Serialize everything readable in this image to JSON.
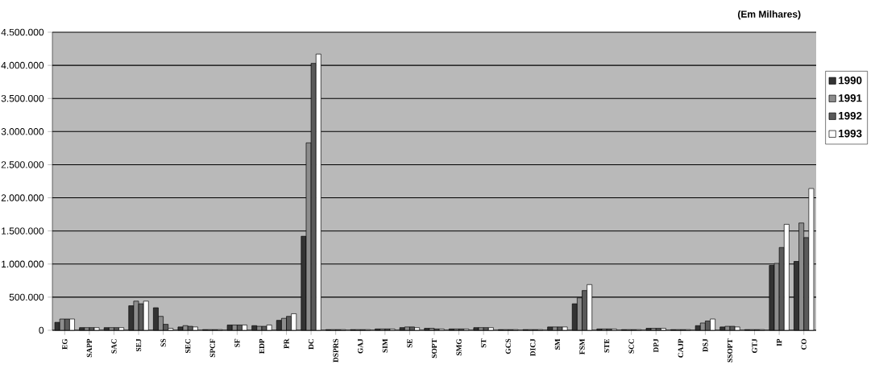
{
  "chart_data": {
    "type": "bar",
    "categories": [
      "EG",
      "SAPP",
      "SAC",
      "SEJ",
      "SS",
      "SEC",
      "SPCF",
      "SF",
      "EDP",
      "PR",
      "DC",
      "DSPRS",
      "GAJ",
      "SIM",
      "SE",
      "SOPT",
      "SMG",
      "ST",
      "GCS",
      "DICJ",
      "SM",
      "FSM",
      "STE",
      "SCC",
      "DPJ",
      "CAJP",
      "DSJ",
      "SSOPT",
      "GTJ",
      "IP",
      "CO"
    ],
    "series": [
      {
        "name": "1990",
        "color": "#333333",
        "values": [
          120000,
          40000,
          40000,
          370000,
          340000,
          50000,
          10000,
          80000,
          70000,
          150000,
          1420000,
          10000,
          10000,
          20000,
          40000,
          30000,
          20000,
          40000,
          10000,
          10000,
          50000,
          400000,
          20000,
          10000,
          30000,
          10000,
          70000,
          50000,
          10000,
          980000,
          1040000
        ]
      },
      {
        "name": "1991",
        "color": "#8c8c8c",
        "values": [
          170000,
          40000,
          40000,
          440000,
          210000,
          70000,
          10000,
          80000,
          60000,
          180000,
          2830000,
          10000,
          10000,
          20000,
          50000,
          30000,
          20000,
          40000,
          10000,
          10000,
          50000,
          490000,
          20000,
          10000,
          30000,
          10000,
          110000,
          60000,
          10000,
          1010000,
          1620000
        ]
      },
      {
        "name": "1992",
        "color": "#5a5a5a",
        "values": [
          170000,
          40000,
          40000,
          400000,
          90000,
          60000,
          10000,
          80000,
          60000,
          210000,
          4030000,
          10000,
          10000,
          20000,
          50000,
          20000,
          20000,
          40000,
          10000,
          10000,
          50000,
          600000,
          20000,
          10000,
          30000,
          10000,
          140000,
          60000,
          10000,
          1250000,
          1400000
        ]
      },
      {
        "name": "1993",
        "color": "#ffffff",
        "values": [
          170000,
          40000,
          40000,
          440000,
          30000,
          50000,
          10000,
          80000,
          80000,
          250000,
          4170000,
          10000,
          10000,
          20000,
          40000,
          20000,
          20000,
          40000,
          10000,
          10000,
          50000,
          690000,
          20000,
          10000,
          30000,
          10000,
          170000,
          50000,
          10000,
          1600000,
          2140000
        ]
      }
    ],
    "ylim": [
      0,
      4500000
    ],
    "yticks": [
      0,
      {
        "value": 500000,
        "label": "500.000"
      },
      {
        "value": 1000000,
        "label": "1.000.000"
      },
      {
        "value": 1500000,
        "label": "1.500.000"
      },
      {
        "value": 2000000,
        "label": "2.000.000"
      },
      {
        "value": 2500000,
        "label": "2.500.000"
      },
      {
        "value": 3000000,
        "label": "3.000.000"
      },
      {
        "value": 3500000,
        "label": "3.500.000"
      },
      {
        "value": 4000000,
        "label": "4.000.000"
      },
      {
        "value": 4500000,
        "label": "4.500.000"
      }
    ],
    "grid": "y",
    "legend": "right",
    "annotations": [
      "(Em Milhares)"
    ]
  }
}
